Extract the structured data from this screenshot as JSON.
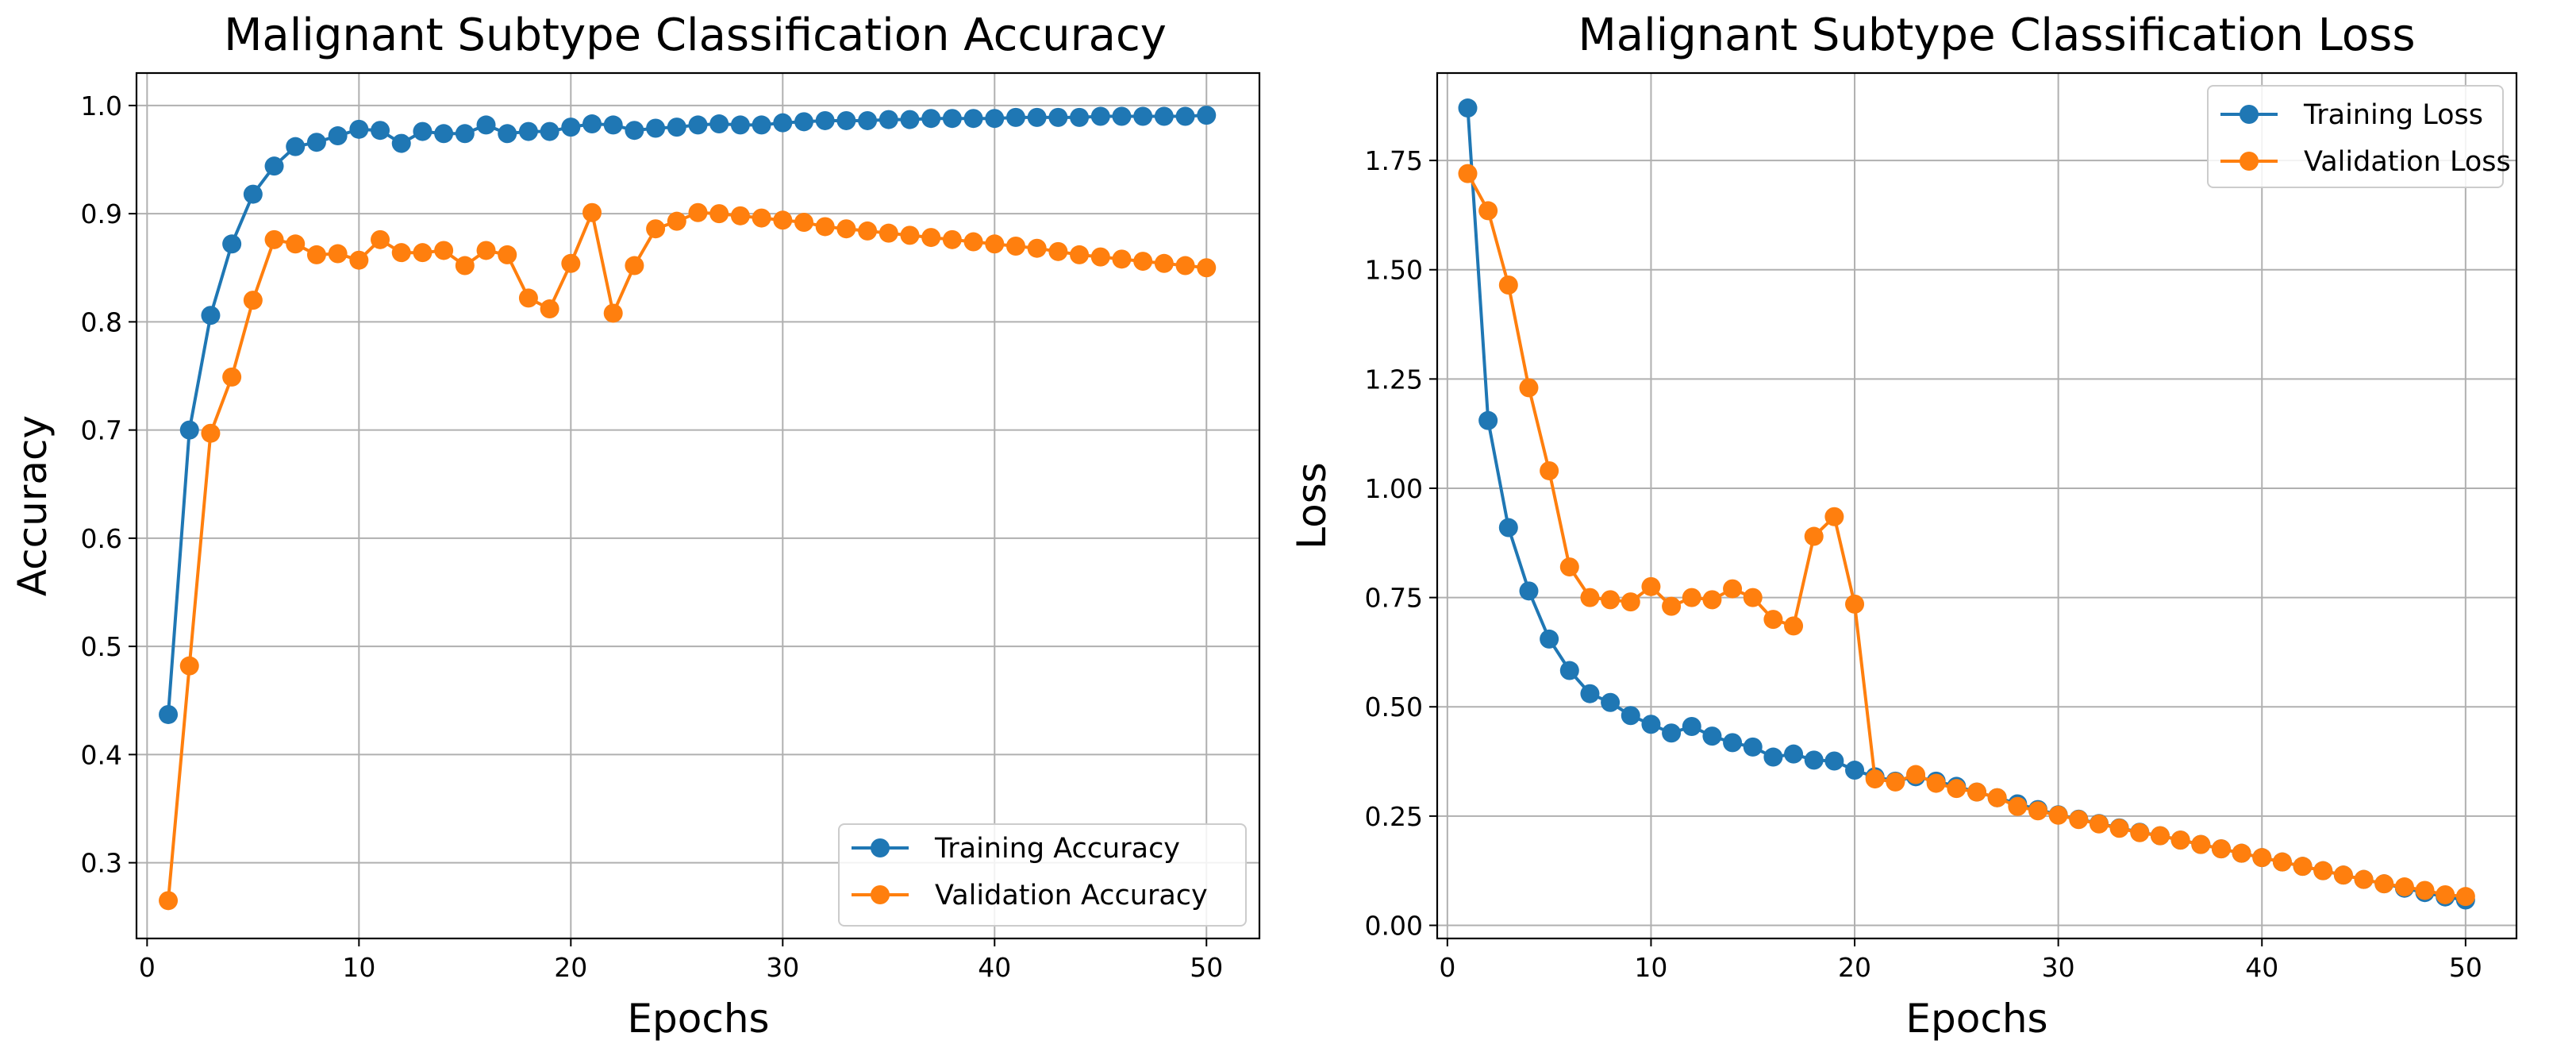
{
  "figure": {
    "left_title": "Malignant Subtype Classification Accuracy",
    "right_title": "Malignant Subtype Classification Loss"
  },
  "chart_data": [
    {
      "type": "line",
      "title": "Malignant Subtype Classification Accuracy",
      "xlabel": "Epochs",
      "ylabel": "Accuracy",
      "xlim": [
        -0.5,
        52.5
      ],
      "ylim": [
        0.23,
        1.03
      ],
      "xticks": [
        0,
        10,
        20,
        30,
        40,
        50
      ],
      "xtick_labels": [
        "0",
        "10",
        "20",
        "30",
        "40",
        "50"
      ],
      "yticks": [
        0.3,
        0.4,
        0.5,
        0.6,
        0.7,
        0.8,
        0.9,
        1.0
      ],
      "ytick_labels": [
        "0.3",
        "0.4",
        "0.5",
        "0.6",
        "0.7",
        "0.8",
        "0.9",
        "1.0"
      ],
      "grid": true,
      "legend_position": "lower-right",
      "x": [
        1,
        2,
        3,
        4,
        5,
        6,
        7,
        8,
        9,
        10,
        11,
        12,
        13,
        14,
        15,
        16,
        17,
        18,
        19,
        20,
        21,
        22,
        23,
        24,
        25,
        26,
        27,
        28,
        29,
        30,
        31,
        32,
        33,
        34,
        35,
        36,
        37,
        38,
        39,
        40,
        41,
        42,
        43,
        44,
        45,
        46,
        47,
        48,
        49,
        50
      ],
      "series": [
        {
          "name": "Training Accuracy",
          "color": "#1f77b4",
          "values": [
            0.437,
            0.7,
            0.806,
            0.872,
            0.918,
            0.944,
            0.962,
            0.966,
            0.972,
            0.978,
            0.977,
            0.965,
            0.976,
            0.974,
            0.974,
            0.982,
            0.974,
            0.976,
            0.976,
            0.98,
            0.983,
            0.982,
            0.977,
            0.979,
            0.98,
            0.982,
            0.983,
            0.982,
            0.982,
            0.984,
            0.985,
            0.986,
            0.986,
            0.986,
            0.987,
            0.987,
            0.988,
            0.988,
            0.988,
            0.988,
            0.989,
            0.989,
            0.989,
            0.989,
            0.99,
            0.99,
            0.99,
            0.99,
            0.99,
            0.991
          ]
        },
        {
          "name": "Validation Accuracy",
          "color": "#ff7f0e",
          "values": [
            0.265,
            0.482,
            0.697,
            0.749,
            0.82,
            0.876,
            0.872,
            0.862,
            0.863,
            0.857,
            0.876,
            0.864,
            0.864,
            0.866,
            0.852,
            0.866,
            0.862,
            0.822,
            0.812,
            0.854,
            0.901,
            0.808,
            0.852,
            0.886,
            0.893,
            0.901,
            0.9,
            0.898,
            0.896,
            0.894,
            0.892,
            0.888,
            0.886,
            0.884,
            0.882,
            0.88,
            0.878,
            0.876,
            0.874,
            0.872,
            0.87,
            0.868,
            0.865,
            0.862,
            0.86,
            0.858,
            0.856,
            0.854,
            0.852,
            0.85
          ]
        }
      ]
    },
    {
      "type": "line",
      "title": "Malignant Subtype Classification Loss",
      "xlabel": "Epochs",
      "ylabel": "Loss",
      "xlim": [
        -0.5,
        52.5
      ],
      "ylim": [
        -0.03,
        1.95
      ],
      "xticks": [
        0,
        10,
        20,
        30,
        40,
        50
      ],
      "xtick_labels": [
        "0",
        "10",
        "20",
        "30",
        "40",
        "50"
      ],
      "yticks": [
        0.0,
        0.25,
        0.5,
        0.75,
        1.0,
        1.25,
        1.5,
        1.75
      ],
      "ytick_labels": [
        "0.00",
        "0.25",
        "0.50",
        "0.75",
        "1.00",
        "1.25",
        "1.50",
        "1.75"
      ],
      "grid": true,
      "legend_position": "upper-right",
      "x": [
        1,
        2,
        3,
        4,
        5,
        6,
        7,
        8,
        9,
        10,
        11,
        12,
        13,
        14,
        15,
        16,
        17,
        18,
        19,
        20,
        21,
        22,
        23,
        24,
        25,
        26,
        27,
        28,
        29,
        30,
        31,
        32,
        33,
        34,
        35,
        36,
        37,
        38,
        39,
        40,
        41,
        42,
        43,
        44,
        45,
        46,
        47,
        48,
        49,
        50
      ],
      "series": [
        {
          "name": "Training Loss",
          "color": "#1f77b4",
          "values": [
            1.87,
            1.155,
            0.91,
            0.765,
            0.655,
            0.583,
            0.53,
            0.51,
            0.48,
            0.46,
            0.44,
            0.455,
            0.433,
            0.418,
            0.408,
            0.385,
            0.392,
            0.378,
            0.376,
            0.355,
            0.34,
            0.33,
            0.34,
            0.33,
            0.318,
            0.305,
            0.292,
            0.278,
            0.265,
            0.253,
            0.243,
            0.233,
            0.223,
            0.213,
            0.205,
            0.195,
            0.185,
            0.175,
            0.165,
            0.155,
            0.145,
            0.135,
            0.125,
            0.115,
            0.105,
            0.095,
            0.085,
            0.075,
            0.065,
            0.058
          ]
        },
        {
          "name": "Validation Loss",
          "color": "#ff7f0e",
          "values": [
            1.72,
            1.635,
            1.465,
            1.23,
            1.04,
            0.82,
            0.75,
            0.745,
            0.74,
            0.775,
            0.73,
            0.75,
            0.745,
            0.77,
            0.75,
            0.7,
            0.685,
            0.89,
            0.935,
            0.735,
            0.335,
            0.328,
            0.345,
            0.325,
            0.313,
            0.305,
            0.292,
            0.272,
            0.262,
            0.252,
            0.242,
            0.232,
            0.222,
            0.212,
            0.205,
            0.195,
            0.185,
            0.175,
            0.165,
            0.155,
            0.145,
            0.135,
            0.125,
            0.115,
            0.105,
            0.095,
            0.088,
            0.08,
            0.07,
            0.066
          ]
        }
      ]
    }
  ]
}
